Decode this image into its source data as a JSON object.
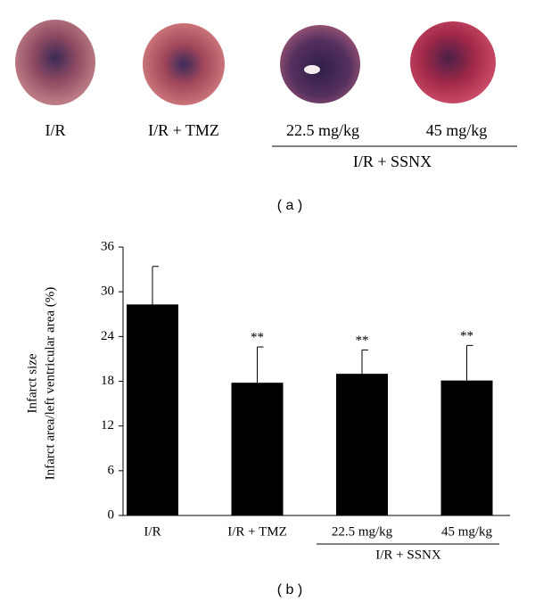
{
  "photos": {
    "labels": [
      "I/R",
      "I/R + TMZ",
      "22.5 mg/kg",
      "45 mg/kg"
    ],
    "group_label": "I/R + SSNX",
    "caption": "( a )"
  },
  "chart_data": {
    "type": "bar",
    "y_label": [
      "Infarct size",
      "Infarct area/left ventricular area (%)"
    ],
    "categories": [
      "I/R",
      "I/R + TMZ",
      "22.5 mg/kg",
      "45 mg/kg"
    ],
    "values": [
      28.3,
      17.8,
      19.0,
      18.1
    ],
    "errors": [
      5.1,
      4.8,
      3.2,
      4.7
    ],
    "significance": [
      null,
      "**",
      "**",
      "**"
    ],
    "group_label": "I/R + SSNX",
    "color": "#000000",
    "ylim": [
      0,
      36
    ],
    "yticks": [
      0,
      6,
      12,
      18,
      24,
      30,
      36
    ],
    "caption": "( b )"
  }
}
